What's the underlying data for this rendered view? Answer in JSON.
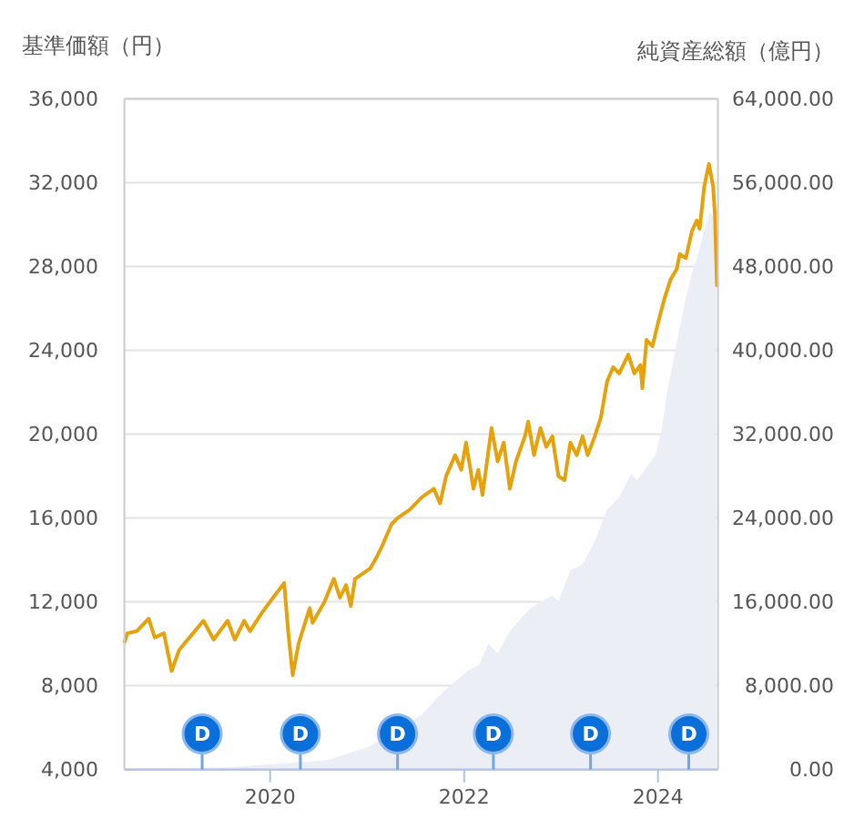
{
  "chart_data": {
    "type": "line",
    "ylabel": "基準価額（円）",
    "y2label": "純資産総額（億円）",
    "xlim": [
      "2018-07-01",
      "2024-08-14"
    ],
    "xticks": [
      "2020",
      "2022",
      "2024"
    ],
    "ylim": [
      4000,
      36000
    ],
    "yticks": [
      {
        "value": 4000,
        "label": "4,000"
      },
      {
        "value": 8000,
        "label": "8,000"
      },
      {
        "value": 12000,
        "label": "12,000"
      },
      {
        "value": 16000,
        "label": "16,000"
      },
      {
        "value": 20000,
        "label": "20,000"
      },
      {
        "value": 24000,
        "label": "24,000"
      },
      {
        "value": 28000,
        "label": "28,000"
      },
      {
        "value": 32000,
        "label": "32,000"
      },
      {
        "value": 36000,
        "label": "36,000"
      }
    ],
    "y2lim": [
      0,
      64000
    ],
    "y2ticks": [
      {
        "value": 0,
        "label": "0.00"
      },
      {
        "value": 8000,
        "label": "8,000.00"
      },
      {
        "value": 16000,
        "label": "16,000.00"
      },
      {
        "value": 24000,
        "label": "24,000.00"
      },
      {
        "value": 32000,
        "label": "32,000.00"
      },
      {
        "value": 40000,
        "label": "40,000.00"
      },
      {
        "value": 48000,
        "label": "48,000.00"
      },
      {
        "value": 56000,
        "label": "56,000.00"
      },
      {
        "value": 64000,
        "label": "64,000.00"
      }
    ],
    "grid": "y",
    "series": [
      {
        "type": "area",
        "axis": "y2",
        "color": "#eceef6",
        "x": [
          "2018-07-02",
          "2019-07-25",
          "2020-01-12",
          "2020-08-05",
          "2021-01-10",
          "2021-07-28",
          "2021-10-13",
          "2022-01-13",
          "2022-02-27",
          "2022-04-02",
          "2022-05-07",
          "2022-06-22",
          "2022-08-30",
          "2022-10-15",
          "2022-11-29",
          "2022-12-22",
          "2023-02-05",
          "2023-03-23",
          "2023-05-08",
          "2023-06-23",
          "2023-08-08",
          "2023-09-22",
          "2023-10-15",
          "2023-12-22",
          "2024-01-14",
          "2024-02-07",
          "2024-02-29",
          "2024-03-23",
          "2024-04-15",
          "2024-05-08",
          "2024-05-30",
          "2024-06-23",
          "2024-07-15",
          "2024-07-31",
          "2024-08-07"
        ],
        "values": [
          100,
          200,
          500,
          900,
          2200,
          5300,
          7400,
          9400,
          10000,
          12000,
          11100,
          13200,
          15200,
          16000,
          16600,
          16000,
          19000,
          19600,
          21800,
          24800,
          26000,
          28200,
          27600,
          30000,
          32300,
          36400,
          39200,
          42200,
          45000,
          47400,
          49100,
          51400,
          53200,
          52600,
          47400
        ]
      },
      {
        "type": "line",
        "color": "#e6a20c",
        "x": [
          "2018-07-02",
          "2018-07-12",
          "2018-08-16",
          "2018-10-01",
          "2018-10-23",
          "2018-11-27",
          "2018-12-26",
          "2019-01-23",
          "2019-03-10",
          "2019-04-25",
          "2019-06-02",
          "2019-07-25",
          "2019-08-21",
          "2019-09-25",
          "2019-10-17",
          "2019-12-02",
          "2020-01-12",
          "2020-02-23",
          "2020-03-09",
          "2020-03-26",
          "2020-04-17",
          "2020-05-29",
          "2020-06-09",
          "2020-07-24",
          "2020-08-28",
          "2020-09-20",
          "2020-10-13",
          "2020-10-31",
          "2020-11-16",
          "2021-01-12",
          "2021-02-04",
          "2021-02-27",
          "2021-04-02",
          "2021-04-25",
          "2021-06-10",
          "2021-07-26",
          "2021-09-09",
          "2021-10-02",
          "2021-10-25",
          "2021-11-28",
          "2021-12-21",
          "2022-01-08",
          "2022-02-05",
          "2022-02-23",
          "2022-03-11",
          "2022-04-14",
          "2022-05-07",
          "2022-05-30",
          "2022-06-22",
          "2022-07-15",
          "2022-08-18",
          "2022-08-30",
          "2022-09-21",
          "2022-10-15",
          "2022-11-06",
          "2022-11-29",
          "2022-12-22",
          "2023-01-14",
          "2023-02-05",
          "2023-03-01",
          "2023-03-23",
          "2023-04-11",
          "2023-05-08",
          "2023-05-31",
          "2023-06-23",
          "2023-07-16",
          "2023-08-08",
          "2023-09-11",
          "2023-10-04",
          "2023-10-27",
          "2023-11-03",
          "2023-11-19",
          "2023-12-11",
          "2024-01-03",
          "2024-01-26",
          "2024-02-18",
          "2024-03-12",
          "2024-03-23",
          "2024-04-15",
          "2024-05-08",
          "2024-05-26",
          "2024-06-06",
          "2024-06-23",
          "2024-07-11",
          "2024-07-27",
          "2024-08-03",
          "2024-08-10"
        ],
        "values": [
          10100,
          10500,
          10600,
          11200,
          10300,
          10500,
          8700,
          9700,
          10400,
          11100,
          10200,
          11100,
          10200,
          11100,
          10600,
          11500,
          12200,
          12900,
          10600,
          8500,
          10000,
          11700,
          11000,
          12000,
          13100,
          12200,
          12800,
          11800,
          13100,
          13600,
          14100,
          14700,
          15700,
          16000,
          16400,
          17000,
          17400,
          16700,
          18000,
          19000,
          18300,
          19600,
          17400,
          18300,
          17100,
          20300,
          18700,
          19600,
          17400,
          18700,
          19900,
          20600,
          19000,
          20300,
          19400,
          19900,
          18000,
          17800,
          19600,
          19000,
          19900,
          19000,
          19900,
          20800,
          22500,
          23200,
          22900,
          23800,
          22900,
          23300,
          22200,
          24500,
          24200,
          25400,
          26500,
          27400,
          27900,
          28600,
          28400,
          29700,
          30200,
          29800,
          31800,
          32900,
          31800,
          30300,
          27100
        ]
      }
    ],
    "annotations": [
      {
        "text": "D",
        "x": "2019-04-20",
        "y": 5700
      },
      {
        "text": "D",
        "x": "2020-04-24",
        "y": 5700
      },
      {
        "text": "D",
        "x": "2021-04-25",
        "y": 5700
      },
      {
        "text": "D",
        "x": "2022-04-21",
        "y": 5700
      },
      {
        "text": "D",
        "x": "2023-04-22",
        "y": 5700
      },
      {
        "text": "D",
        "x": "2024-04-26",
        "y": 5700
      }
    ]
  }
}
